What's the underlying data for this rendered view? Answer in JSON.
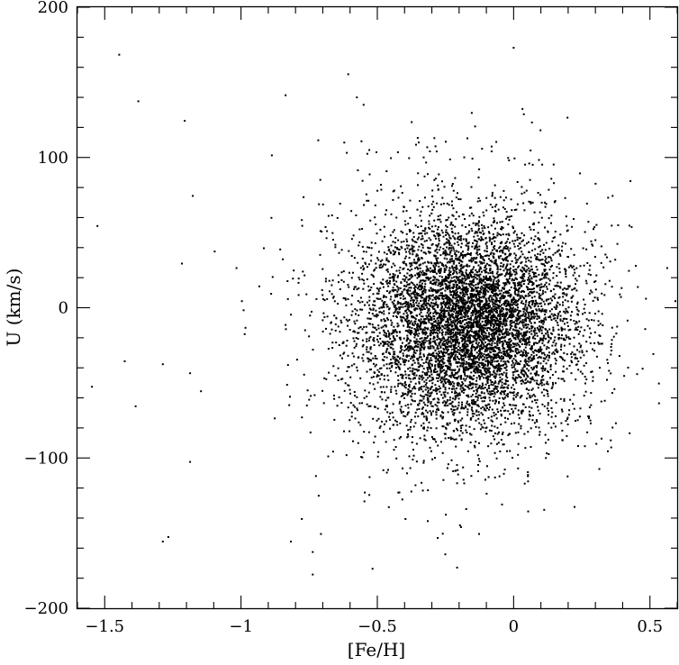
{
  "chart_data": {
    "type": "scatter",
    "title": "",
    "xlabel": "[Fe/H]",
    "ylabel": "U (km/s)",
    "xlim": [
      -1.6,
      0.6
    ],
    "ylim": [
      -200,
      200
    ],
    "x_ticks": [
      -1.5,
      -1,
      -0.5,
      0,
      0.5
    ],
    "x_tick_labels": [
      "−1.5",
      "−1",
      "−0.5",
      "0",
      "0.5"
    ],
    "y_ticks": [
      -200,
      -100,
      0,
      100,
      200
    ],
    "y_tick_labels": [
      "−200",
      "−100",
      "0",
      "100",
      "200"
    ],
    "grid": false,
    "legend": "none",
    "marker_color": "#000000",
    "distribution": {
      "center_fe_h": -0.15,
      "center_u": -10,
      "n_points_approx": 7000
    },
    "series": [
      {
        "outliers": [
          {
            "x": -1.45,
            "y": 169
          },
          {
            "x": -1.38,
            "y": 138
          },
          {
            "x": -1.21,
            "y": 125
          },
          {
            "x": -0.61,
            "y": 156
          },
          {
            "x": -0.84,
            "y": 142
          },
          {
            "x": -0.72,
            "y": 112
          },
          {
            "x": -0.89,
            "y": 102
          },
          {
            "x": -1.53,
            "y": 55
          },
          {
            "x": -1.18,
            "y": 75
          },
          {
            "x": -1.22,
            "y": 30
          },
          {
            "x": -1.1,
            "y": 38
          },
          {
            "x": -1.02,
            "y": 27
          },
          {
            "x": -1.43,
            "y": -35
          },
          {
            "x": -1.55,
            "y": -52
          },
          {
            "x": -1.39,
            "y": -65
          },
          {
            "x": -1.29,
            "y": -37
          },
          {
            "x": -1.19,
            "y": -43
          },
          {
            "x": -1.15,
            "y": -55
          },
          {
            "x": -1.0,
            "y": 5
          },
          {
            "x": -0.99,
            "y": -17
          },
          {
            "x": -1.19,
            "y": -102
          },
          {
            "x": -1.29,
            "y": -155
          },
          {
            "x": -1.27,
            "y": -152
          },
          {
            "x": -0.74,
            "y": -162
          },
          {
            "x": -0.82,
            "y": -155
          },
          {
            "x": -0.78,
            "y": -140
          },
          {
            "x": -0.74,
            "y": -177
          },
          {
            "x": -0.71,
            "y": -150
          },
          {
            "x": -0.4,
            "y": -140
          },
          {
            "x": -0.13,
            "y": -150
          },
          {
            "x": 0.22,
            "y": -132
          },
          {
            "x": 0.05,
            "y": -135
          },
          {
            "x": 0.3,
            "y": -90
          },
          {
            "x": 0.47,
            "y": -40
          },
          {
            "x": 0.53,
            "y": -63
          },
          {
            "x": 0.56,
            "y": 27
          },
          {
            "x": 0.59,
            "y": 5
          },
          {
            "x": 0.24,
            "y": 90
          },
          {
            "x": 0.36,
            "y": 75
          },
          {
            "x": -0.29,
            "y": 108
          },
          {
            "x": 0.0,
            "y": 100
          },
          {
            "x": -0.54,
            "y": 103
          }
        ]
      }
    ]
  }
}
